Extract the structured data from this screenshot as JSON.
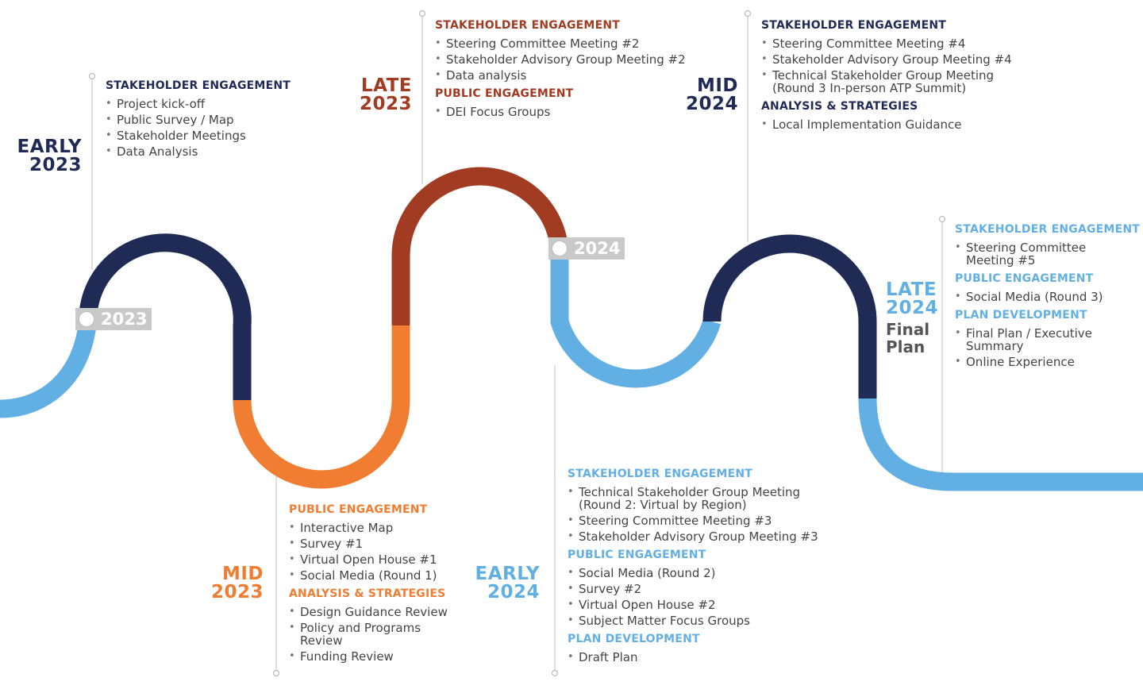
{
  "colors": {
    "light_blue": "#62b0e3",
    "navy": "#1f2b55",
    "orange": "#f07d32",
    "rust": "#a13b22",
    "badge_gray": "#c9c9c9",
    "connector": "#cccccc"
  },
  "milestones": {
    "early_2023": {
      "line1": "EARLY",
      "line2": "2023",
      "color": "#1f2b55"
    },
    "mid_2023": {
      "line1": "MID",
      "line2": "2023",
      "color": "#f07d32"
    },
    "late_2023": {
      "line1": "LATE",
      "line2": "2023",
      "color": "#a13b22"
    },
    "early_2024": {
      "line1": "EARLY",
      "line2": "2024",
      "color": "#62b0e3"
    },
    "mid_2024": {
      "line1": "MID",
      "line2": "2024",
      "color": "#1f2b55"
    },
    "late_2024": {
      "line1": "LATE",
      "line2": "2024",
      "color": "#62b0e3",
      "extra1": "Final",
      "extra2": "Plan"
    }
  },
  "year_badges": [
    "2023",
    "2024"
  ],
  "blocks": {
    "early_2023": [
      {
        "title": "STAKEHOLDER ENGAGEMENT",
        "color": "#1f2b55",
        "items": [
          "Project kick-off",
          "Public Survey / Map",
          "Stakeholder Meetings",
          "Data Analysis"
        ]
      }
    ],
    "mid_2023": [
      {
        "title": "PUBLIC ENGAGEMENT",
        "color": "#f07d32",
        "items": [
          "Interactive Map",
          "Survey #1",
          "Virtual Open House #1",
          "Social Media (Round 1)"
        ]
      },
      {
        "title": "ANALYSIS & STRATEGIES",
        "color": "#f07d32",
        "items": [
          "Design Guidance Review",
          "Policy and Programs Review",
          "Funding Review"
        ]
      }
    ],
    "late_2023": [
      {
        "title": "STAKEHOLDER ENGAGEMENT",
        "color": "#a13b22",
        "items": [
          "Steering Committee Meeting #2",
          "Stakeholder Advisory Group Meeting #2",
          "Data analysis"
        ]
      },
      {
        "title": "PUBLIC ENGAGEMENT",
        "color": "#a13b22",
        "items": [
          "DEI Focus Groups"
        ]
      }
    ],
    "early_2024": [
      {
        "title": "STAKEHOLDER ENGAGEMENT",
        "color": "#62b0e3",
        "items": [
          "Technical Stakeholder Group Meeting (Round 2: Virtual by Region)",
          "Steering Committee Meeting #3",
          "Stakeholder Advisory Group Meeting #3"
        ]
      },
      {
        "title": "PUBLIC ENGAGEMENT",
        "color": "#62b0e3",
        "items": [
          "Social Media (Round 2)",
          "Survey #2",
          "Virtual Open House #2",
          "Subject Matter Focus Groups"
        ]
      },
      {
        "title": "PLAN DEVELOPMENT",
        "color": "#62b0e3",
        "items": [
          "Draft Plan"
        ]
      }
    ],
    "mid_2024": [
      {
        "title": "STAKEHOLDER ENGAGEMENT",
        "color": "#1f2b55",
        "items": [
          "Steering Committee Meeting #4",
          "Stakeholder Advisory Group Meeting #4",
          "Technical Stakeholder Group Meeting (Round 3 In-person ATP Summit)"
        ]
      },
      {
        "title": "ANALYSIS & STRATEGIES",
        "color": "#1f2b55",
        "items": [
          "Local Implementation Guidance"
        ]
      }
    ],
    "late_2024": [
      {
        "title": "STAKEHOLDER ENGAGEMENT",
        "color": "#62b0e3",
        "items": [
          "Steering Committee Meeting #5"
        ]
      },
      {
        "title": "PUBLIC ENGAGEMENT",
        "color": "#62b0e3",
        "items": [
          "Social Media (Round 3)"
        ]
      },
      {
        "title": "PLAN DEVELOPMENT",
        "color": "#62b0e3",
        "items": [
          "Final Plan / Executive Summary",
          "Online Experience"
        ]
      }
    ]
  }
}
